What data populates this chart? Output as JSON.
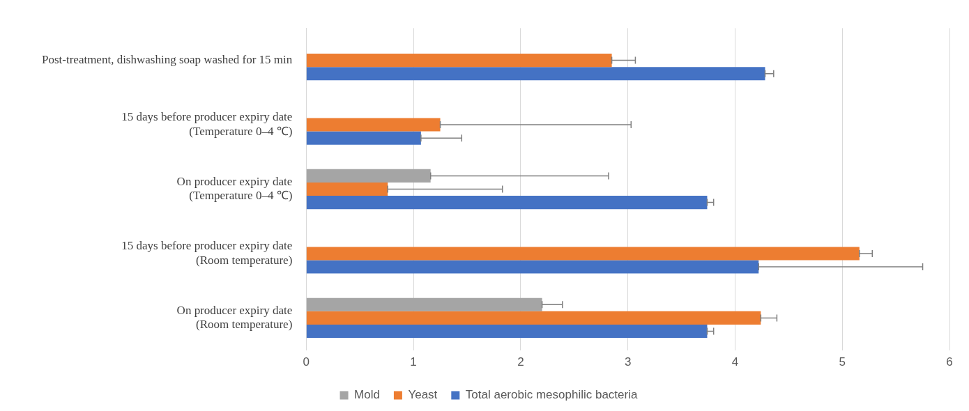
{
  "chart_data": {
    "type": "bar",
    "orientation": "horizontal",
    "categories": [
      "Post-treatment, dishwashing soap washed for 15 min",
      "15 days before producer expiry date\n(Temperature 0–4 ℃)",
      "On producer expiry date\n(Temperature 0–4 ℃)",
      "15 days before producer expiry date\n(Room temperature)",
      "On producer expiry date\n(Room temperature)"
    ],
    "series": [
      {
        "name": "Mold",
        "color": "#a5a5a5",
        "values": [
          null,
          null,
          1.16,
          null,
          2.2
        ],
        "errors": [
          null,
          null,
          [
            1.16,
            2.82
          ],
          null,
          [
            2.2,
            2.39
          ]
        ]
      },
      {
        "name": "Yeast",
        "color": "#ed7d31",
        "values": [
          2.85,
          1.25,
          0.76,
          5.16,
          4.24
        ],
        "errors": [
          [
            2.85,
            3.07
          ],
          [
            1.25,
            3.03
          ],
          [
            0.76,
            1.83
          ],
          [
            5.16,
            5.28
          ],
          [
            4.24,
            4.39
          ]
        ]
      },
      {
        "name": "Total aerobic mesophilic bacteria",
        "color": "#4472c4",
        "values": [
          4.28,
          1.07,
          3.74,
          4.22,
          3.74
        ],
        "errors": [
          [
            4.28,
            4.36
          ],
          [
            1.07,
            1.45
          ],
          [
            3.74,
            3.8
          ],
          [
            4.22,
            5.75
          ],
          [
            3.74,
            3.8
          ]
        ]
      }
    ],
    "xlim": [
      0,
      6
    ],
    "xticks": [
      0,
      1,
      2,
      3,
      4,
      5,
      6
    ],
    "grid": "x",
    "legend": "bottom"
  }
}
